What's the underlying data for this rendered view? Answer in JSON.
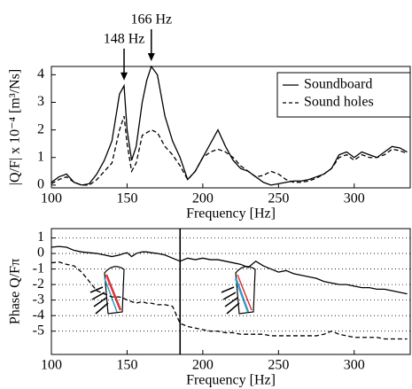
{
  "chart_data": [
    {
      "type": "line",
      "xlabel": "Frequency [Hz]",
      "ylabel": "|Q/F| x 10⁻⁴ [m³/Ns]",
      "x": [
        100,
        105,
        110,
        115,
        120,
        125,
        130,
        135,
        140,
        145,
        148,
        150,
        153,
        156,
        160,
        163,
        166,
        170,
        175,
        180,
        185,
        190,
        195,
        200,
        205,
        210,
        215,
        220,
        225,
        230,
        235,
        240,
        245,
        250,
        255,
        260,
        265,
        270,
        275,
        280,
        285,
        290,
        295,
        300,
        305,
        310,
        315,
        320,
        325,
        330,
        335
      ],
      "series": [
        {
          "name": "Soundboard",
          "color": "#000000",
          "dash": false,
          "values": [
            0.1,
            0.3,
            0.4,
            0.1,
            0,
            0.05,
            0.4,
            0.9,
            1.6,
            3.3,
            3.6,
            2.0,
            0.9,
            1.4,
            3.0,
            3.8,
            4.3,
            4.0,
            2.5,
            1.6,
            1.0,
            0.2,
            0.5,
            1.0,
            1.5,
            2.0,
            1.4,
            0.9,
            0.6,
            0.5,
            0.3,
            0.1,
            0,
            0.05,
            0.1,
            0.15,
            0.15,
            0.2,
            0.3,
            0.4,
            0.6,
            1.1,
            1.2,
            1.0,
            1.2,
            1.1,
            1.0,
            1.2,
            1.4,
            1.35,
            1.2
          ]
        },
        {
          "name": "Sound holes",
          "color": "#000000",
          "dash": true,
          "values": [
            0.05,
            0.2,
            0.3,
            0.1,
            0,
            0,
            0.2,
            0.5,
            0.8,
            2.0,
            2.5,
            1.5,
            0.5,
            0.8,
            1.8,
            1.9,
            2.0,
            1.9,
            1.4,
            1.1,
            0.7,
            0.2,
            0.5,
            1.0,
            1.2,
            1.3,
            1.2,
            1.0,
            0.7,
            0.5,
            0.3,
            0.35,
            0.5,
            0.4,
            0.2,
            0.1,
            0.1,
            0.15,
            0.25,
            0.4,
            0.6,
            1.0,
            1.1,
            0.9,
            1.1,
            1.0,
            1.0,
            1.1,
            1.3,
            1.25,
            1.15
          ]
        }
      ],
      "xlim": [
        100,
        337
      ],
      "xticks": [
        100,
        150,
        200,
        250,
        300
      ],
      "ylim": [
        -0.1,
        4.3
      ],
      "yticks": [
        0,
        1,
        2,
        3,
        4
      ],
      "grid": false,
      "legend": "upper right",
      "annotations": [
        {
          "text": "148 Hz",
          "x": 148,
          "y": 3.6
        },
        {
          "text": "166 Hz",
          "x": 166,
          "y": 4.3
        }
      ]
    },
    {
      "type": "line",
      "xlabel": "Frequency [Hz]",
      "ylabel": "Phase Q/Fπ",
      "x": [
        100,
        105,
        110,
        115,
        120,
        125,
        130,
        135,
        140,
        145,
        148,
        150,
        153,
        156,
        160,
        163,
        166,
        170,
        175,
        180,
        185,
        190,
        195,
        200,
        205,
        210,
        215,
        220,
        225,
        230,
        235,
        240,
        245,
        250,
        255,
        260,
        265,
        270,
        275,
        280,
        285,
        290,
        295,
        300,
        305,
        310,
        315,
        320,
        325,
        330,
        335
      ],
      "series": [
        {
          "color": "#000000",
          "dash": false,
          "values": [
            0.4,
            0.45,
            0.4,
            0.2,
            0.1,
            0.05,
            0,
            -0.1,
            -0.2,
            -0.1,
            0,
            0.05,
            -0.2,
            0,
            0.1,
            0.1,
            0.05,
            0,
            -0.1,
            -0.3,
            -0.5,
            -0.3,
            -0.4,
            -0.3,
            -0.4,
            -0.4,
            -0.5,
            -0.6,
            -0.7,
            -0.9,
            -0.5,
            -0.8,
            -1.0,
            -1.2,
            -1.1,
            -1.3,
            -1.4,
            -1.5,
            -1.6,
            -1.8,
            -1.9,
            -2.0,
            -2.0,
            -2.1,
            -2.2,
            -2.2,
            -2.3,
            -2.3,
            -2.4,
            -2.5,
            -2.6
          ]
        },
        {
          "color": "#000000",
          "dash": true,
          "values": [
            -0.6,
            -0.55,
            -0.7,
            -0.8,
            -1.2,
            -1.8,
            -2.4,
            -2.6,
            -2.8,
            -2.8,
            -2.9,
            -3.0,
            -3.1,
            -3.2,
            -3.1,
            -3.2,
            -3.2,
            -3.3,
            -3.3,
            -3.4,
            -4.5,
            -4.7,
            -4.8,
            -4.9,
            -5.0,
            -5.0,
            -5.1,
            -5.1,
            -5.2,
            -5.2,
            -5.2,
            -5.2,
            -5.3,
            -5.3,
            -5.3,
            -5.3,
            -5.3,
            -5.3,
            -5.3,
            -5.2,
            -5.0,
            -5.2,
            -5.3,
            -5.4,
            -5.4,
            -5.4,
            -5.4,
            -5.5,
            -5.5,
            -5.5,
            -5.5
          ]
        }
      ],
      "xlim": [
        100,
        337
      ],
      "xticks": [
        100,
        150,
        200,
        250,
        300
      ],
      "ylim": [
        -6.5,
        1.6
      ],
      "yticks": [
        1,
        0,
        -1,
        -2,
        -3,
        -4,
        -5
      ],
      "grid": true,
      "vline": 185
    }
  ]
}
